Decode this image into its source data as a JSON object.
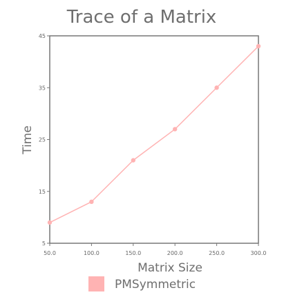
{
  "chart_data": {
    "type": "line",
    "title": "Trace of a Matrix",
    "xlabel": "Matrix Size",
    "ylabel": "Time",
    "x": [
      50.0,
      100.0,
      150.0,
      200.0,
      250.0,
      300.0
    ],
    "xticks": [
      "50.0",
      "100.0",
      "150.0",
      "200.0",
      "250.0",
      "300.0"
    ],
    "yticks": [
      "5",
      "15",
      "25",
      "35",
      "45"
    ],
    "xlim": [
      50,
      300
    ],
    "ylim": [
      5,
      45
    ],
    "grid": false,
    "legend_position": "bottom",
    "series": [
      {
        "name": "PMSymmetric",
        "values": [
          9,
          13,
          21,
          27,
          35,
          43
        ],
        "color": "#ffb3b3"
      }
    ]
  }
}
